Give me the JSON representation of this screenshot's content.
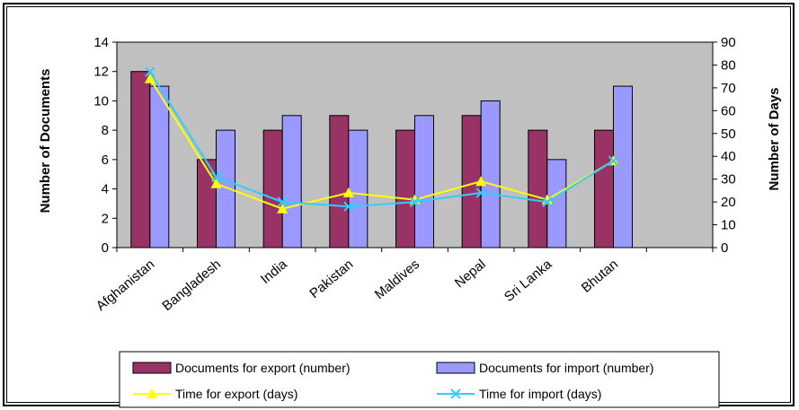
{
  "chart_data": {
    "type": "bar",
    "title": "",
    "categories": [
      "Afghanistan",
      "Bangladesh",
      "India",
      "Pakistan",
      "Maldives",
      "Nepal",
      "Sri Lanka",
      "Bhutan"
    ],
    "series": [
      {
        "name": "Documents for export (number)",
        "axis": "left",
        "kind": "bar",
        "color": "#993366",
        "values": [
          12,
          6,
          8,
          9,
          8,
          9,
          8,
          8
        ]
      },
      {
        "name": "Documents for import (number)",
        "axis": "left",
        "kind": "bar",
        "color": "#9999ff",
        "values": [
          11,
          8,
          9,
          8,
          9,
          10,
          6,
          11
        ]
      },
      {
        "name": "Time for export (days)",
        "axis": "right",
        "kind": "line",
        "marker": "triangle",
        "color": "#ffff00",
        "values": [
          74,
          28,
          17,
          24,
          21,
          29,
          21,
          38
        ]
      },
      {
        "name": "Time for import (days)",
        "axis": "right",
        "kind": "line",
        "marker": "x",
        "color": "#33ccff",
        "values": [
          77,
          31,
          20,
          18,
          20,
          24,
          20,
          38
        ]
      }
    ],
    "ylabel": "Number of Documents",
    "y2label": "Number of Days",
    "ylim": [
      0,
      14
    ],
    "yticks": [
      "0",
      "2",
      "4",
      "6",
      "8",
      "10",
      "12",
      "14"
    ],
    "y2lim": [
      0,
      90
    ],
    "y2ticks": [
      "0",
      "10",
      "20",
      "30",
      "40",
      "50",
      "60",
      "70",
      "80",
      "90"
    ],
    "plot_background": "#c0c0c0",
    "grid": false,
    "legend_position": "bottom"
  }
}
